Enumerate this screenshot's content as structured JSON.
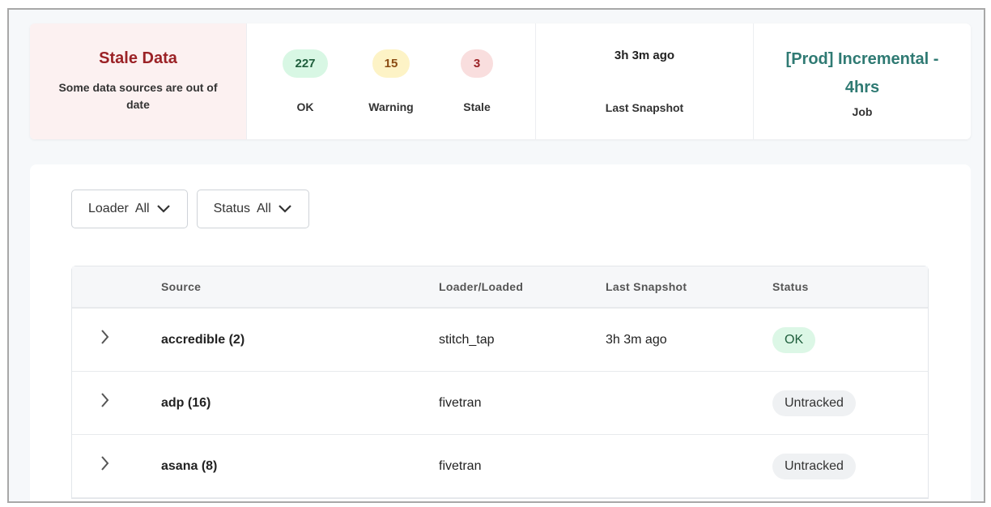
{
  "summary": {
    "alert": {
      "title": "Stale Data",
      "message": "Some data sources are out of date"
    },
    "counts": [
      {
        "value": "227",
        "label": "OK",
        "bg": "#d8f7e4",
        "fg": "#1f5e3c"
      },
      {
        "value": "15",
        "label": "Warning",
        "bg": "#fdf3c6",
        "fg": "#8a4b12"
      },
      {
        "value": "3",
        "label": "Stale",
        "bg": "#f9dede",
        "fg": "#9b2226"
      }
    ],
    "last_snapshot": {
      "value": "3h 3m ago",
      "label": "Last Snapshot"
    },
    "job": {
      "value": "[Prod] Incremental - 4hrs",
      "label": "Job"
    }
  },
  "filters": [
    {
      "label": "Loader",
      "value": "All"
    },
    {
      "label": "Status",
      "value": "All"
    }
  ],
  "table": {
    "columns": [
      "Source",
      "Loader/Loaded",
      "Last Snapshot",
      "Status"
    ],
    "rows": [
      {
        "source": "accredible (2)",
        "loader": "stitch_tap",
        "last_snapshot": "3h 3m ago",
        "status": "OK",
        "status_bg": "#dcf7e6",
        "status_fg": "#1f5e3c"
      },
      {
        "source": "adp (16)",
        "loader": "fivetran",
        "last_snapshot": "",
        "status": "Untracked",
        "status_bg": "#eff1f3",
        "status_fg": "#333"
      },
      {
        "source": "asana (8)",
        "loader": "fivetran",
        "last_snapshot": "",
        "status": "Untracked",
        "status_bg": "#eff1f3",
        "status_fg": "#333"
      }
    ]
  }
}
